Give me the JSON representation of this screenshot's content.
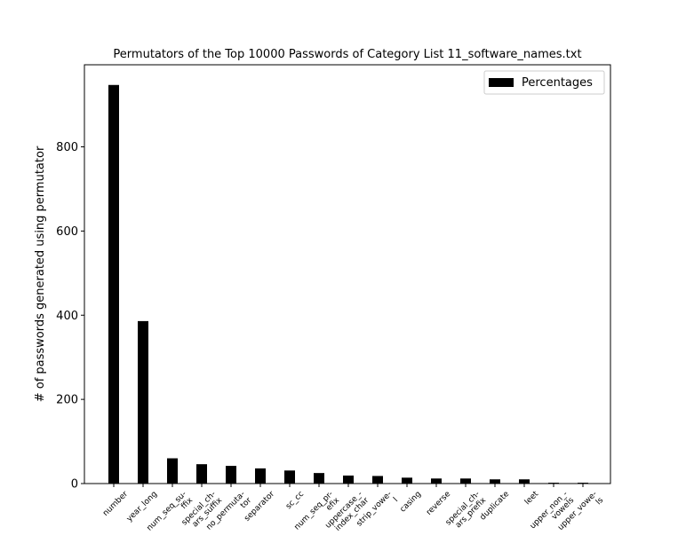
{
  "chart_data": {
    "type": "bar",
    "title": "Permutators of the Top 10000 Passwords of Category List 11_software_names.txt",
    "xlabel": "",
    "ylabel": "# of passwords generated using permutator",
    "ylim": [
      0,
      995
    ],
    "yticks": [
      0,
      200,
      400,
      600,
      800
    ],
    "bar_color": "#000000",
    "legend": {
      "position": "top-right",
      "entries": [
        "Percentages"
      ]
    },
    "grid": false,
    "categories": [
      [
        "number"
      ],
      [
        "year_long"
      ],
      [
        "num_seq_su-",
        "ffix"
      ],
      [
        "special_ch-",
        "ars_suffix"
      ],
      [
        "no_permuta-",
        "tor"
      ],
      [
        "separator"
      ],
      [
        "sc_cc"
      ],
      [
        "num_seq_pr-",
        "efix"
      ],
      [
        "uppercase_-",
        "index_char"
      ],
      [
        "strip_vowe-",
        "l"
      ],
      [
        "casing"
      ],
      [
        "reverse"
      ],
      [
        "special_ch-",
        "ars_prefix"
      ],
      [
        "duplicate"
      ],
      [
        "leet"
      ],
      [
        "upper_non_-",
        "vowels"
      ],
      [
        "upper_vowe-",
        "ls"
      ]
    ],
    "series": [
      {
        "name": "Percentages",
        "values": [
          947,
          386,
          60,
          46,
          42,
          36,
          31,
          25,
          19,
          18,
          14,
          12,
          12,
          10,
          10,
          2,
          2
        ]
      }
    ]
  }
}
